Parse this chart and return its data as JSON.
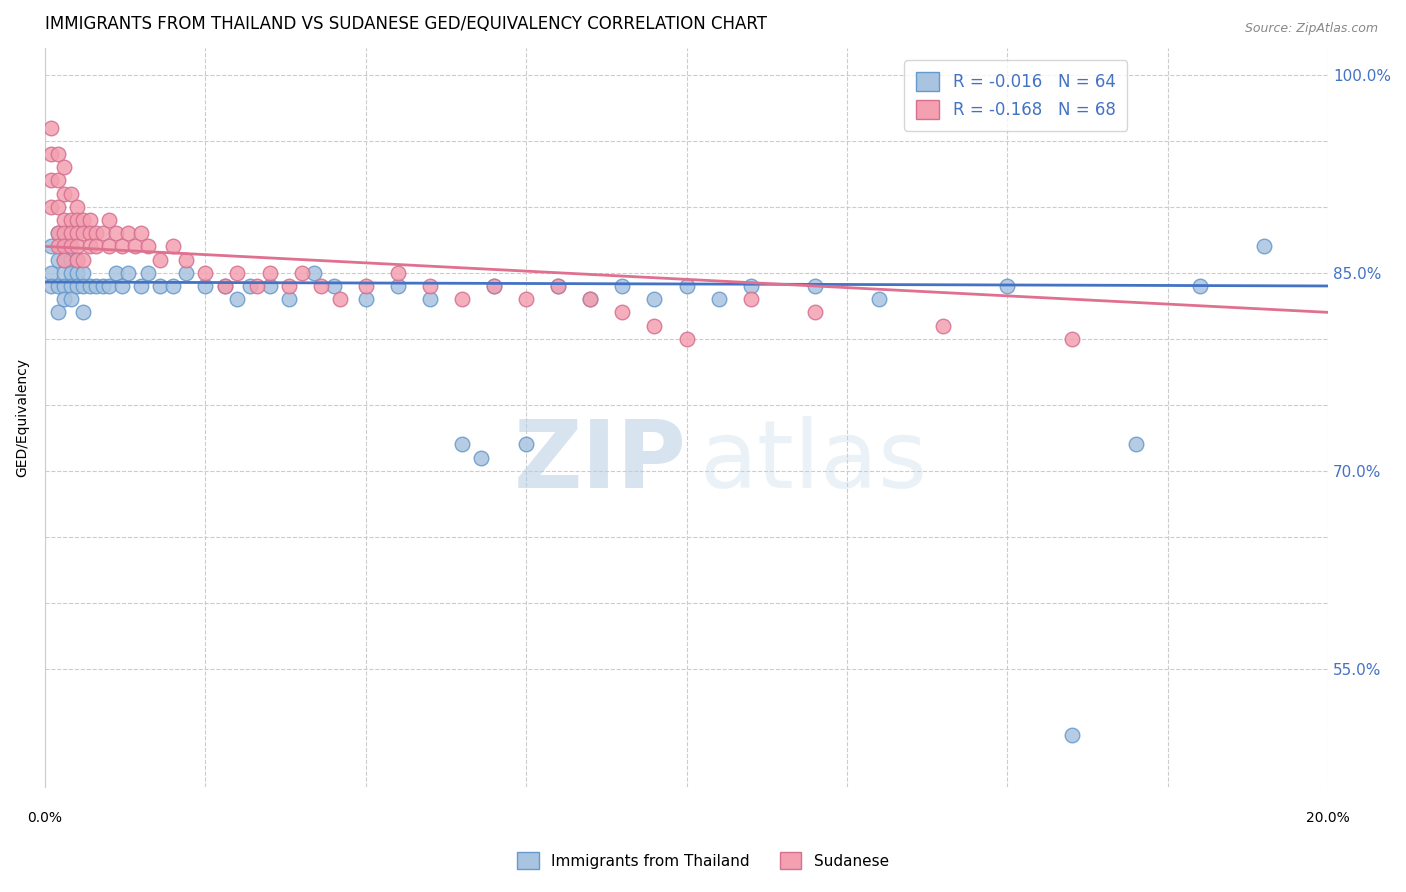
{
  "title": "IMMIGRANTS FROM THAILAND VS SUDANESE GED/EQUIVALENCY CORRELATION CHART",
  "source": "Source: ZipAtlas.com",
  "ylabel": "GED/Equivalency",
  "xlim": [
    0.0,
    0.2
  ],
  "ylim": [
    0.46,
    1.02
  ],
  "blue_color": "#a8c4e0",
  "pink_color": "#f4a0b0",
  "blue_edge_color": "#6699cc",
  "pink_edge_color": "#d47090",
  "blue_line_color": "#4472c4",
  "pink_line_color": "#e07090",
  "legend_blue_label": "R = -0.016   N = 64",
  "legend_pink_label": "R = -0.168   N = 68",
  "legend_label_blue": "Immigrants from Thailand",
  "legend_label_pink": "Sudanese",
  "grid_color": "#cccccc",
  "right_tick_color": "#4472c4",
  "title_fontsize": 12,
  "tick_fontsize": 10,
  "blue_trend_x": [
    0.0,
    0.2
  ],
  "blue_trend_y": [
    0.843,
    0.84
  ],
  "pink_trend_x": [
    0.0,
    0.2
  ],
  "pink_trend_y": [
    0.87,
    0.82
  ],
  "blue_scatter_x": [
    0.001,
    0.001,
    0.001,
    0.002,
    0.002,
    0.002,
    0.002,
    0.003,
    0.003,
    0.003,
    0.003,
    0.003,
    0.004,
    0.004,
    0.004,
    0.004,
    0.004,
    0.005,
    0.005,
    0.005,
    0.006,
    0.006,
    0.006,
    0.007,
    0.008,
    0.009,
    0.01,
    0.011,
    0.012,
    0.013,
    0.015,
    0.016,
    0.018,
    0.02,
    0.022,
    0.025,
    0.028,
    0.03,
    0.032,
    0.035,
    0.038,
    0.042,
    0.045,
    0.05,
    0.055,
    0.06,
    0.065,
    0.068,
    0.07,
    0.075,
    0.08,
    0.085,
    0.09,
    0.095,
    0.1,
    0.105,
    0.11,
    0.12,
    0.13,
    0.15,
    0.16,
    0.17,
    0.18,
    0.19
  ],
  "blue_scatter_y": [
    0.87,
    0.85,
    0.84,
    0.88,
    0.86,
    0.84,
    0.82,
    0.87,
    0.86,
    0.85,
    0.84,
    0.83,
    0.87,
    0.86,
    0.85,
    0.84,
    0.83,
    0.86,
    0.85,
    0.84,
    0.85,
    0.84,
    0.82,
    0.84,
    0.84,
    0.84,
    0.84,
    0.85,
    0.84,
    0.85,
    0.84,
    0.85,
    0.84,
    0.84,
    0.85,
    0.84,
    0.84,
    0.83,
    0.84,
    0.84,
    0.83,
    0.85,
    0.84,
    0.83,
    0.84,
    0.83,
    0.72,
    0.71,
    0.84,
    0.72,
    0.84,
    0.83,
    0.84,
    0.83,
    0.84,
    0.83,
    0.84,
    0.84,
    0.83,
    0.84,
    0.5,
    0.72,
    0.84,
    0.87
  ],
  "pink_scatter_x": [
    0.001,
    0.001,
    0.001,
    0.001,
    0.002,
    0.002,
    0.002,
    0.002,
    0.002,
    0.003,
    0.003,
    0.003,
    0.003,
    0.003,
    0.003,
    0.004,
    0.004,
    0.004,
    0.004,
    0.005,
    0.005,
    0.005,
    0.005,
    0.005,
    0.006,
    0.006,
    0.006,
    0.007,
    0.007,
    0.007,
    0.008,
    0.008,
    0.009,
    0.01,
    0.01,
    0.011,
    0.012,
    0.013,
    0.014,
    0.015,
    0.016,
    0.018,
    0.02,
    0.022,
    0.025,
    0.028,
    0.03,
    0.033,
    0.035,
    0.038,
    0.04,
    0.043,
    0.046,
    0.05,
    0.055,
    0.06,
    0.065,
    0.07,
    0.075,
    0.08,
    0.085,
    0.09,
    0.095,
    0.1,
    0.11,
    0.12,
    0.14,
    0.16
  ],
  "pink_scatter_y": [
    0.96,
    0.94,
    0.92,
    0.9,
    0.94,
    0.92,
    0.9,
    0.88,
    0.87,
    0.93,
    0.91,
    0.89,
    0.88,
    0.87,
    0.86,
    0.91,
    0.89,
    0.88,
    0.87,
    0.9,
    0.89,
    0.88,
    0.87,
    0.86,
    0.89,
    0.88,
    0.86,
    0.89,
    0.88,
    0.87,
    0.88,
    0.87,
    0.88,
    0.89,
    0.87,
    0.88,
    0.87,
    0.88,
    0.87,
    0.88,
    0.87,
    0.86,
    0.87,
    0.86,
    0.85,
    0.84,
    0.85,
    0.84,
    0.85,
    0.84,
    0.85,
    0.84,
    0.83,
    0.84,
    0.85,
    0.84,
    0.83,
    0.84,
    0.83,
    0.84,
    0.83,
    0.82,
    0.81,
    0.8,
    0.83,
    0.82,
    0.81,
    0.8
  ]
}
